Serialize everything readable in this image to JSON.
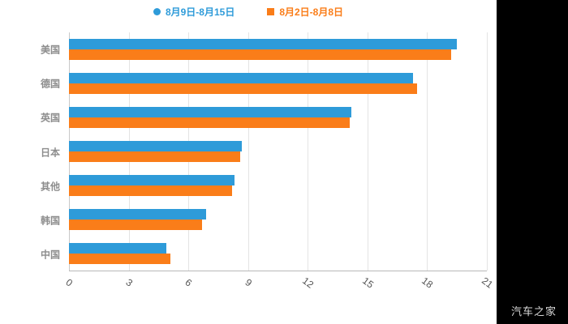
{
  "watermark": "汽车之家",
  "chart_data": {
    "type": "bar",
    "orientation": "horizontal",
    "title": "",
    "xlabel": "",
    "ylabel": "",
    "categories": [
      "美国",
      "德国",
      "英国",
      "日本",
      "其他",
      "韩国",
      "中国"
    ],
    "series": [
      {
        "name": "8月9日-8月15日",
        "marker": "circle",
        "color": "#2E9BD9",
        "values": [
          19.5,
          17.3,
          14.2,
          8.7,
          8.3,
          6.9,
          4.9
        ]
      },
      {
        "name": "8月2日-8月8日",
        "marker": "square",
        "color": "#FA7D19",
        "values": [
          19.2,
          17.5,
          14.1,
          8.6,
          8.2,
          6.7,
          5.1
        ]
      }
    ],
    "x_ticks": [
      0,
      3,
      6,
      9,
      12,
      15,
      18,
      21
    ],
    "xlim": [
      0,
      21
    ],
    "grid": true,
    "legend_position": "top-center"
  }
}
